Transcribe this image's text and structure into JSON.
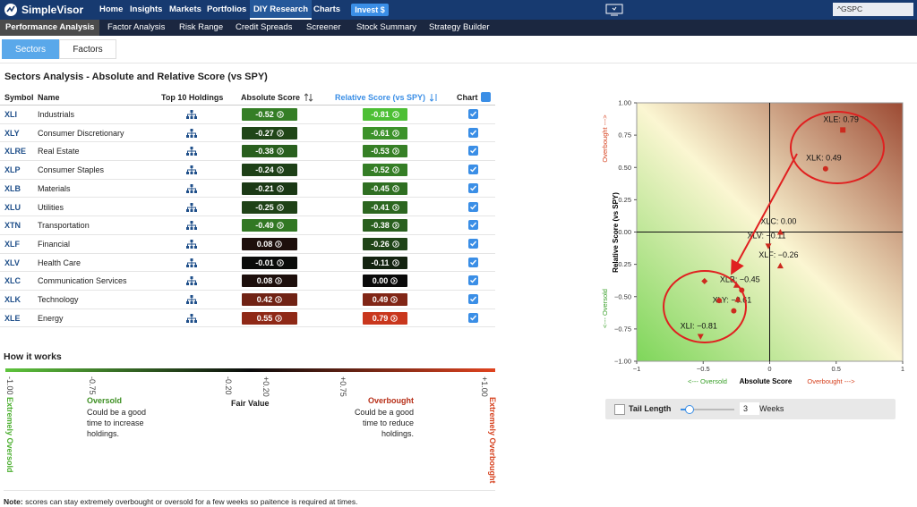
{
  "nav": {
    "brand": "SimpleVisor",
    "items": [
      "Home",
      "Insights",
      "Markets",
      "Portfolios",
      "DIY Research",
      "Charts"
    ],
    "active": 4,
    "invest": "Invest $",
    "search": "^GSPC"
  },
  "subnav": {
    "items": [
      "Performance Analysis",
      "Factor Analysis",
      "Risk Range",
      "Credit Spreads",
      "Screener",
      "Stock Summary",
      "Strategy Builder"
    ],
    "active": 0
  },
  "tabs": {
    "items": [
      "Sectors",
      "Factors"
    ],
    "active": 0
  },
  "table": {
    "title": "Sectors Analysis - Absolute and Relative Score (vs SPY)",
    "columns": [
      "Symbol",
      "Name",
      "Top 10 Holdings",
      "Absolute Score",
      "Relative Score (vs SPY)",
      "Chart"
    ],
    "rows": [
      [
        "XLI",
        "Industrials",
        "-0.52",
        "-0.81"
      ],
      [
        "XLY",
        "Consumer Discretionary",
        "-0.27",
        "-0.61"
      ],
      [
        "XLRE",
        "Real Estate",
        "-0.38",
        "-0.53"
      ],
      [
        "XLP",
        "Consumer Staples",
        "-0.24",
        "-0.52"
      ],
      [
        "XLB",
        "Materials",
        "-0.21",
        "-0.45"
      ],
      [
        "XLU",
        "Utilities",
        "-0.25",
        "-0.41"
      ],
      [
        "XTN",
        "Transportation",
        "-0.49",
        "-0.38"
      ],
      [
        "XLF",
        "Financial",
        "0.08",
        "-0.26"
      ],
      [
        "XLV",
        "Health Care",
        "-0.01",
        "-0.11"
      ],
      [
        "XLC",
        "Communication Services",
        "0.08",
        "0.00"
      ],
      [
        "XLK",
        "Technology",
        "0.42",
        "0.49"
      ],
      [
        "XLE",
        "Energy",
        "0.55",
        "0.79"
      ]
    ]
  },
  "how_it_works": {
    "title": "How it works",
    "scale": [
      "-1.00",
      "-0.75",
      "-0.20",
      "+0.20",
      "+0.75",
      "+1.00"
    ],
    "oversold": {
      "title": "Oversold",
      "text": "Could be a good time to increase holdings."
    },
    "fair_value": "Fair Value",
    "overbought": {
      "title": "Overbought",
      "text": "Could be a good time to reduce holdings."
    },
    "extreme_low": "Extremely Oversold",
    "extreme_high": "Extremely Overbought"
  },
  "chart": {
    "type": "scatter",
    "xlabel": "Absolute Score",
    "ylabel": "Relative Score (vs SPY)",
    "x_low": "<--- Oversold",
    "x_high": "Overbought --->",
    "y_low": "<--- Oversold",
    "y_high": "Overbought --->",
    "xlim": [
      -1,
      1
    ],
    "ylim": [
      -1,
      1
    ],
    "xticks": [
      {
        "value": -1,
        "label": "−1"
      },
      {
        "value": -0.5,
        "label": "−0.5"
      },
      0,
      0.5,
      1
    ],
    "yticks": [
      {
        "value": -1,
        "label": "−1.00"
      },
      {
        "value": -0.75,
        "label": "−0.75"
      },
      {
        "value": -0.5,
        "label": "−0.50"
      },
      {
        "value": -0.25,
        "label": "−0.25"
      },
      {
        "value": 0,
        "label": "0.00"
      },
      {
        "value": 0.25,
        "label": "0.25"
      },
      {
        "value": 0.5,
        "label": "0.50"
      },
      {
        "value": 0.75,
        "label": "0.75"
      },
      {
        "value": 1,
        "label": "1.00"
      }
    ],
    "color": "#cc2a1e",
    "x": [
      -0.52,
      -0.27,
      -0.38,
      -0.24,
      -0.21,
      -0.25,
      -0.49,
      0.08,
      -0.01,
      0.08,
      0.42,
      0.55
    ],
    "y": [
      -0.81,
      -0.61,
      -0.53,
      -0.52,
      -0.45,
      -0.41,
      -0.38,
      -0.26,
      -0.11,
      0.0,
      0.49,
      0.79
    ],
    "labels": [
      "XLI: −0.81",
      "XLY: −0.61",
      null,
      null,
      "XLB: −0.45",
      null,
      null,
      "XLF: −0.26",
      "XLV: −0.11",
      "XLC: 0.00",
      "XLK: 0.49",
      "XLE: 0.79"
    ],
    "markers": [
      "triangle-down",
      "circle",
      "circle",
      "triangle-up",
      "circle",
      "triangle-up",
      "diamond",
      "triangle-up",
      "triangle-down",
      "triangle-up",
      "circle",
      "square"
    ]
  },
  "tail": {
    "label": "Tail Length",
    "value": "3",
    "unit": "Weeks"
  },
  "note": {
    "bold": "Note:",
    "text": " scores can stay extremely overbought or oversold for a few weeks so paitence is required at times."
  }
}
